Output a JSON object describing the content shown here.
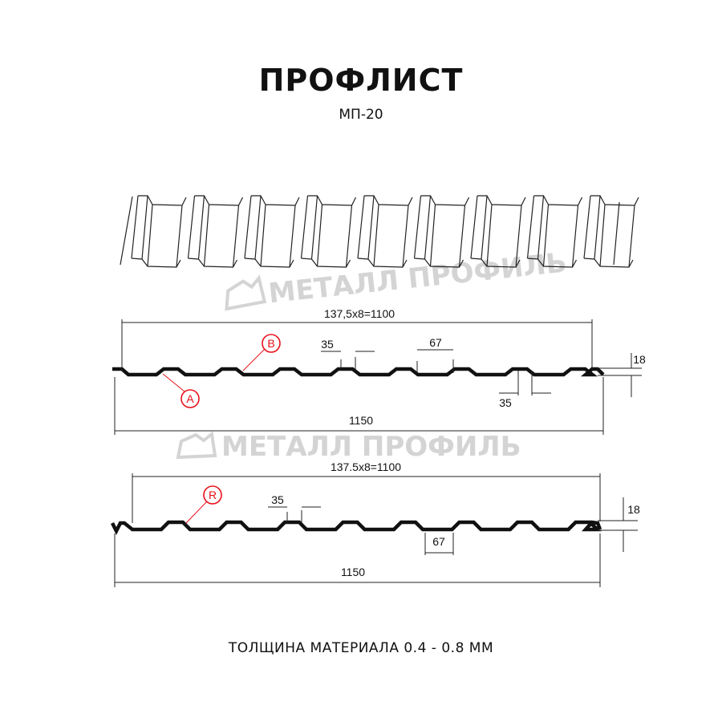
{
  "header": {
    "title": "ПРОФЛИСТ",
    "subtitle": "МП-20"
  },
  "watermark": "МЕТАЛЛ ПРОФИЛЬ",
  "profile_a": {
    "span_label": "137,5x8=1100",
    "total_label": "1150",
    "crest_label": "35",
    "trough_label": "67",
    "bottom_gap_label": "35",
    "height_label": "18",
    "marker_a": "A",
    "marker_b": "B"
  },
  "profile_r": {
    "span_label": "137.5x8=1100",
    "total_label": "1150",
    "crest_label": "35",
    "trough_label": "67",
    "height_label": "18",
    "marker_r": "R"
  },
  "footer": {
    "thickness": "ТОЛЩИНА МАТЕРИАЛА 0.4 - 0.8 ММ"
  },
  "colors": {
    "line": "#111111",
    "marker": "#e8101a",
    "watermark": "#d4d4d4"
  }
}
